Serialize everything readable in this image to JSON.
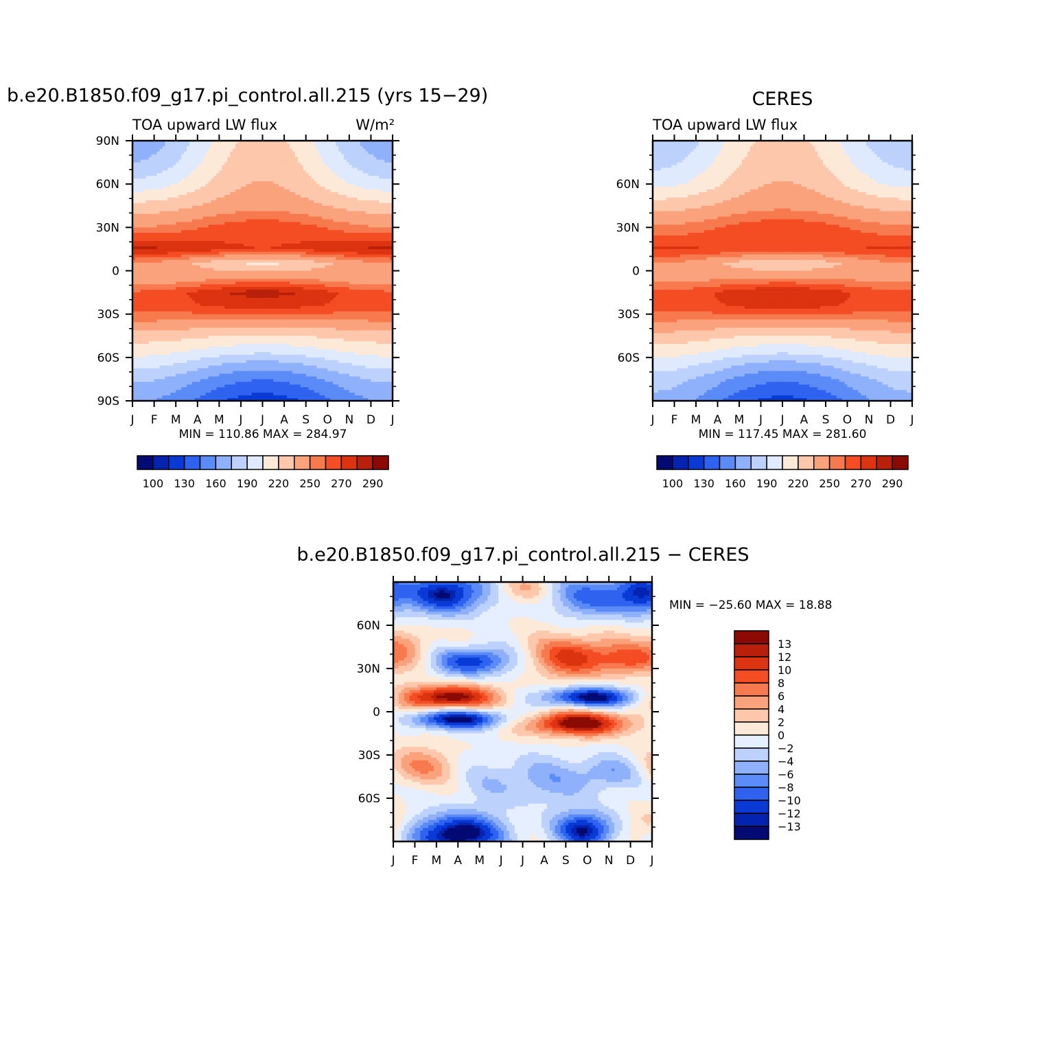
{
  "chart_data": [
    {
      "type": "heatmap",
      "title": "b.e20.B1850.f09_g17.pi_control.all.215 (yrs 15−29)",
      "left_label": "TOA upward LW flux",
      "units": "W/m²",
      "x_ticks": [
        "J",
        "F",
        "M",
        "A",
        "M",
        "J",
        "J",
        "A",
        "S",
        "O",
        "N",
        "D",
        "J"
      ],
      "y_ticks": [
        "90N",
        "60N",
        "30N",
        "0",
        "30S",
        "60S",
        "90S"
      ],
      "stats": "MIN = 110.86 MAX = 284.97",
      "colorbar_labels": [
        "100",
        "130",
        "160",
        "190",
        "220",
        "250",
        "270",
        "290"
      ],
      "colorbar_colors": [
        "#030a73",
        "#0424b0",
        "#0a3ad6",
        "#2f63ef",
        "#5a8bf6",
        "#8fb1fb",
        "#bcd2fd",
        "#dfeafe",
        "#fde9d8",
        "#fcc7aa",
        "#f9a27c",
        "#f77a4f",
        "#f44d24",
        "#dc3311",
        "#b9200a",
        "#8c0a04"
      ],
      "contour_field": {
        "latitude_bands": [
          {
            "lat": 90,
            "jan": 165,
            "jul": 225
          },
          {
            "lat": 75,
            "jan": 175,
            "jul": 230
          },
          {
            "lat": 60,
            "jan": 195,
            "jul": 236
          },
          {
            "lat": 45,
            "jan": 225,
            "jul": 245
          },
          {
            "lat": 30,
            "jan": 250,
            "jul": 268
          },
          {
            "lat": 15,
            "jan": 283,
            "jul": 270
          },
          {
            "lat": 5,
            "jan": 248,
            "jul": 218
          },
          {
            "lat": -5,
            "jan": 238,
            "jul": 250
          },
          {
            "lat": -15,
            "jan": 262,
            "jul": 284
          },
          {
            "lat": -25,
            "jan": 266,
            "jul": 272
          },
          {
            "lat": -35,
            "jan": 250,
            "jul": 244
          },
          {
            "lat": -45,
            "jan": 228,
            "jul": 218
          },
          {
            "lat": -55,
            "jan": 212,
            "jul": 196
          },
          {
            "lat": -65,
            "jan": 196,
            "jul": 168
          },
          {
            "lat": -75,
            "jan": 178,
            "jul": 146
          },
          {
            "lat": -90,
            "jan": 162,
            "jul": 122
          }
        ]
      }
    },
    {
      "type": "heatmap",
      "title": "CERES",
      "left_label": "TOA upward LW flux",
      "x_ticks": [
        "J",
        "F",
        "M",
        "A",
        "M",
        "J",
        "J",
        "A",
        "S",
        "O",
        "N",
        "D",
        "J"
      ],
      "y_ticks": [
        "60N",
        "30N",
        "0",
        "30S",
        "60S"
      ],
      "stats": "MIN = 117.45 MAX = 281.60",
      "colorbar_labels": [
        "100",
        "130",
        "160",
        "190",
        "220",
        "250",
        "270",
        "290"
      ],
      "colorbar_colors": [
        "#030a73",
        "#0424b0",
        "#0a3ad6",
        "#2f63ef",
        "#5a8bf6",
        "#8fb1fb",
        "#bcd2fd",
        "#dfeafe",
        "#fde9d8",
        "#fcc7aa",
        "#f9a27c",
        "#f77a4f",
        "#f44d24",
        "#dc3311",
        "#b9200a",
        "#8c0a04"
      ],
      "contour_field": {
        "latitude_bands": [
          {
            "lat": 90,
            "jan": 175,
            "jul": 225
          },
          {
            "lat": 75,
            "jan": 185,
            "jul": 230
          },
          {
            "lat": 60,
            "jan": 200,
            "jul": 236
          },
          {
            "lat": 45,
            "jan": 228,
            "jul": 246
          },
          {
            "lat": 30,
            "jan": 252,
            "jul": 268
          },
          {
            "lat": 15,
            "jan": 272,
            "jul": 268
          },
          {
            "lat": 5,
            "jan": 250,
            "jul": 222
          },
          {
            "lat": -5,
            "jan": 244,
            "jul": 250
          },
          {
            "lat": -15,
            "jan": 262,
            "jul": 280
          },
          {
            "lat": -25,
            "jan": 266,
            "jul": 272
          },
          {
            "lat": -35,
            "jan": 250,
            "jul": 244
          },
          {
            "lat": -45,
            "jan": 230,
            "jul": 218
          },
          {
            "lat": -55,
            "jan": 214,
            "jul": 196
          },
          {
            "lat": -65,
            "jan": 198,
            "jul": 168
          },
          {
            "lat": -75,
            "jan": 182,
            "jul": 148
          },
          {
            "lat": -90,
            "jan": 170,
            "jul": 125
          }
        ]
      }
    },
    {
      "type": "heatmap",
      "title": "b.e20.B1850.f09_g17.pi_control.all.215 − CERES",
      "x_ticks": [
        "J",
        "F",
        "M",
        "A",
        "M",
        "J",
        "J",
        "A",
        "S",
        "O",
        "N",
        "D",
        "J"
      ],
      "y_ticks": [
        "60N",
        "30N",
        "0",
        "30S",
        "60S"
      ],
      "stats": "MIN = −25.60 MAX =  18.88",
      "colorbar_labels": [
        "13",
        "12",
        "10",
        "8",
        "6",
        "4",
        "2",
        "0",
        "−2",
        "−4",
        "−6",
        "−8",
        "−10",
        "−12",
        "−13"
      ],
      "colorbar_colors": [
        "#8c0a04",
        "#b9200a",
        "#dc3311",
        "#f44d24",
        "#f77a4f",
        "#f9a27c",
        "#fcc7aa",
        "#fde9d8",
        "#e6efff",
        "#bcd2fd",
        "#8fb1fb",
        "#5a8bf6",
        "#2f63ef",
        "#0a3ad6",
        "#0424b0",
        "#030a73"
      ],
      "contour_field": {
        "features": [
          {
            "month": 2.5,
            "lat": 82,
            "value": -14,
            "sx": 1.2,
            "sy": 10
          },
          {
            "month": 9.5,
            "lat": 80,
            "value": -9,
            "sx": 1.5,
            "sy": 10
          },
          {
            "month": 11.5,
            "lat": 82,
            "value": -8,
            "sx": 0.8,
            "sy": 10
          },
          {
            "month": 6.0,
            "lat": 85,
            "value": 4,
            "sx": 0.8,
            "sy": 6
          },
          {
            "month": 0.6,
            "lat": 45,
            "value": 5,
            "sx": 0.9,
            "sy": 10
          },
          {
            "month": 3.7,
            "lat": 35,
            "value": -12,
            "sx": 1.2,
            "sy": 7
          },
          {
            "month": 8.5,
            "lat": 38,
            "value": 11,
            "sx": 1.4,
            "sy": 10
          },
          {
            "month": 11.0,
            "lat": 36,
            "value": 6,
            "sx": 0.9,
            "sy": 7
          },
          {
            "month": 2.5,
            "lat": 10,
            "value": 15,
            "sx": 1.6,
            "sy": 6
          },
          {
            "month": 9.2,
            "lat": 10,
            "value": -14,
            "sx": 1.6,
            "sy": 5
          },
          {
            "month": 3.0,
            "lat": -5,
            "value": -14,
            "sx": 1.7,
            "sy": 5
          },
          {
            "month": 8.6,
            "lat": -8,
            "value": 15,
            "sx": 1.8,
            "sy": 6
          },
          {
            "month": 1.2,
            "lat": -38,
            "value": 6,
            "sx": 1.2,
            "sy": 9
          },
          {
            "month": 6.5,
            "lat": -48,
            "value": -5,
            "sx": 2.2,
            "sy": 12
          },
          {
            "month": 10.0,
            "lat": -42,
            "value": -5,
            "sx": 1.0,
            "sy": 8
          },
          {
            "month": 3.0,
            "lat": -85,
            "value": -16,
            "sx": 1.4,
            "sy": 10
          },
          {
            "month": 8.9,
            "lat": -82,
            "value": -13,
            "sx": 1.0,
            "sy": 9
          },
          {
            "month": 11.8,
            "lat": -78,
            "value": 4,
            "sx": 0.7,
            "sy": 8
          }
        ]
      }
    }
  ]
}
